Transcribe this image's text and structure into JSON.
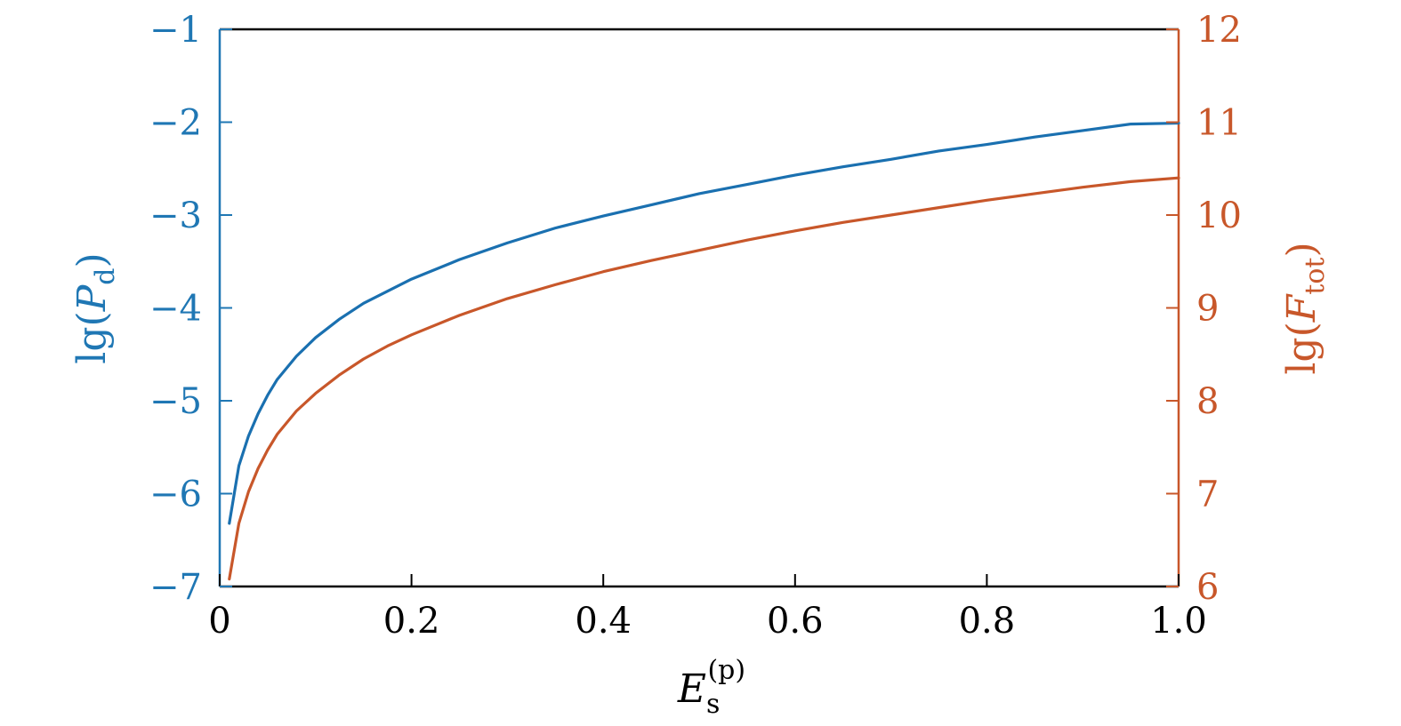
{
  "chart_data": {
    "type": "line",
    "title": "",
    "xlabel": {
      "base": "E",
      "sub": "s",
      "sup": "(p)"
    },
    "ylabel_left": {
      "prefix": "lg(",
      "var": "P",
      "sub": "d",
      "suffix": ")"
    },
    "ylabel_right": {
      "prefix": "lg(",
      "var": "F",
      "sub": "tot",
      "suffix": ")"
    },
    "xlim": [
      0,
      1
    ],
    "ylim_left": [
      -7,
      -1
    ],
    "ylim_right": [
      6,
      12
    ],
    "x_ticks": [
      0,
      0.2,
      0.4,
      0.6,
      0.8,
      1.0
    ],
    "x_tick_labels": [
      "0",
      "0.2",
      "0.4",
      "0.6",
      "0.8",
      "1.0"
    ],
    "y_left_ticks": [
      -7,
      -6,
      -5,
      -4,
      -3,
      -2,
      -1
    ],
    "y_left_tick_labels": [
      "−7",
      "−6",
      "−5",
      "−4",
      "−3",
      "−2",
      "−1"
    ],
    "y_right_ticks": [
      6,
      7,
      8,
      9,
      10,
      11,
      12
    ],
    "y_right_tick_labels": [
      "6",
      "7",
      "8",
      "9",
      "10",
      "11",
      "12"
    ],
    "grid": false,
    "colors": {
      "left_axis": "#1f77b4",
      "right_axis": "#c8572a",
      "frame": "#000000"
    },
    "series": [
      {
        "axis": "left",
        "color": "#1a70b0",
        "x": [
          0.01,
          0.02,
          0.03,
          0.04,
          0.05,
          0.06,
          0.08,
          0.1,
          0.125,
          0.15,
          0.175,
          0.2,
          0.25,
          0.3,
          0.35,
          0.4,
          0.45,
          0.5,
          0.55,
          0.6,
          0.65,
          0.7,
          0.75,
          0.8,
          0.85,
          0.9,
          0.95,
          1.0
        ],
        "y": [
          -6.32,
          -5.7,
          -5.38,
          -5.14,
          -4.94,
          -4.77,
          -4.52,
          -4.32,
          -4.12,
          -3.95,
          -3.82,
          -3.69,
          -3.48,
          -3.3,
          -3.14,
          -3.01,
          -2.89,
          -2.77,
          -2.67,
          -2.57,
          -2.48,
          -2.4,
          -2.31,
          -2.24,
          -2.16,
          -2.09,
          -2.02,
          -2.01
        ]
      },
      {
        "axis": "right",
        "color": "#c8572a",
        "x": [
          0.01,
          0.02,
          0.03,
          0.04,
          0.05,
          0.06,
          0.08,
          0.1,
          0.125,
          0.15,
          0.175,
          0.2,
          0.25,
          0.3,
          0.35,
          0.4,
          0.45,
          0.5,
          0.55,
          0.6,
          0.65,
          0.7,
          0.75,
          0.8,
          0.85,
          0.9,
          0.95,
          1.0
        ],
        "y": [
          6.08,
          6.68,
          7.02,
          7.27,
          7.47,
          7.64,
          7.89,
          8.08,
          8.28,
          8.45,
          8.59,
          8.71,
          8.92,
          9.1,
          9.25,
          9.39,
          9.51,
          9.62,
          9.73,
          9.83,
          9.92,
          10.0,
          10.08,
          10.16,
          10.23,
          10.3,
          10.36,
          10.4
        ]
      }
    ]
  }
}
